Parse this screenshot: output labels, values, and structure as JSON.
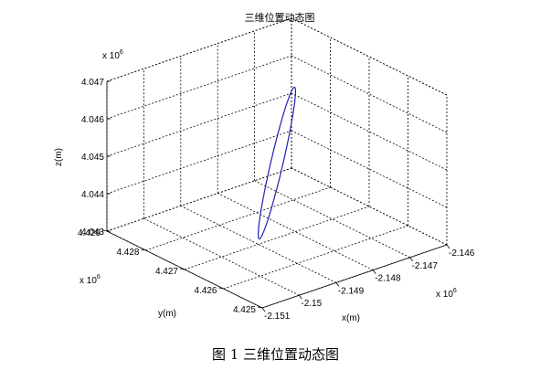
{
  "chart_data": {
    "type": "line3d",
    "title": "三维位置动态图",
    "xlabel": "x(m)",
    "ylabel": "y(m)",
    "zlabel": "z(m)",
    "x_ticks": [
      "-2.151",
      "-2.15",
      "-2.149",
      "-2.148",
      "-2.147",
      "-2.146"
    ],
    "y_ticks": [
      "4.425",
      "4.426",
      "4.427",
      "4.428",
      "4.429"
    ],
    "z_ticks": [
      "4.043",
      "4.044",
      "4.045",
      "4.046",
      "4.047"
    ],
    "x_exponent": "x 10",
    "y_exponent": "x 10",
    "z_exponent": "x 10",
    "exponent_power": "6",
    "xlim": [
      -2151000,
      -2146000
    ],
    "ylim": [
      4425000,
      4429000
    ],
    "zlim": [
      4043000,
      4047000
    ],
    "grid": true,
    "line_color": "#1f1fb4",
    "series": [
      {
        "orbit_center": {
          "x": -2148500,
          "y": 4427000,
          "z": 4045000
        },
        "orbit_half_span": {
          "x": 1300,
          "y": 800,
          "z": 1170
        },
        "orbit_minor_radius": 130
      }
    ]
  },
  "caption": "图 1  三维位置动态图"
}
